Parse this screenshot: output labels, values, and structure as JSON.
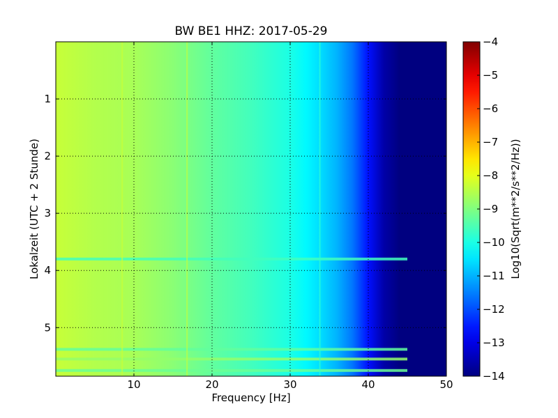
{
  "chart_data": {
    "type": "heatmap",
    "title": "BW BE1 HHZ: 2017-05-29",
    "xlabel": "Frequency [Hz]",
    "ylabel": "Lokalzeit (UTC + 2 Stunde)",
    "xlim": [
      0,
      50
    ],
    "ylim": [
      5.85,
      0
    ],
    "y_axis_inverted": true,
    "x_ticks": [
      10,
      20,
      30,
      40,
      50
    ],
    "x_tick_labels": [
      "10",
      "20",
      "30",
      "40",
      "50"
    ],
    "y_ticks": [
      1,
      2,
      3,
      4,
      5
    ],
    "y_tick_labels": [
      "1",
      "2",
      "3",
      "4",
      "5"
    ],
    "grid": true,
    "colormap": "jet",
    "colorbar": {
      "label": "Log10(Sqrt(m**2/s**2/Hz))",
      "range": [
        -14,
        -4
      ],
      "ticks": [
        -14,
        -13,
        -12,
        -11,
        -10,
        -9,
        -8,
        -7,
        -6,
        -5,
        -4
      ],
      "tick_labels": [
        "−14",
        "−13",
        "−12",
        "−11",
        "−10",
        "−9",
        "−8",
        "−7",
        "−6",
        "−5",
        "−4"
      ]
    },
    "spectrum_profile": {
      "frequency_hz": [
        0,
        5,
        10,
        15,
        20,
        25,
        30,
        32,
        34,
        36,
        38,
        40,
        42,
        44,
        46,
        50
      ],
      "level": [
        -8.3,
        -8.5,
        -8.6,
        -8.9,
        -9.3,
        -9.6,
        -10.0,
        -10.3,
        -10.6,
        -11.0,
        -11.6,
        -12.6,
        -13.6,
        -14.0,
        -14.0,
        -14.0
      ]
    },
    "horizontal_bands": [
      {
        "time": 3.8,
        "level": -9.6,
        "f_max": 45
      },
      {
        "time": 5.38,
        "level": -9.3,
        "f_max": 45
      },
      {
        "time": 5.55,
        "level": -8.8,
        "f_max": 45
      },
      {
        "time": 5.75,
        "level": -9.2,
        "f_max": 45
      }
    ],
    "vertical_lines": [
      {
        "frequency": 8.5,
        "level": -8.3
      },
      {
        "frequency": 16.8,
        "level": -8.4
      },
      {
        "frequency": 33.8,
        "level": -9.8
      }
    ]
  }
}
